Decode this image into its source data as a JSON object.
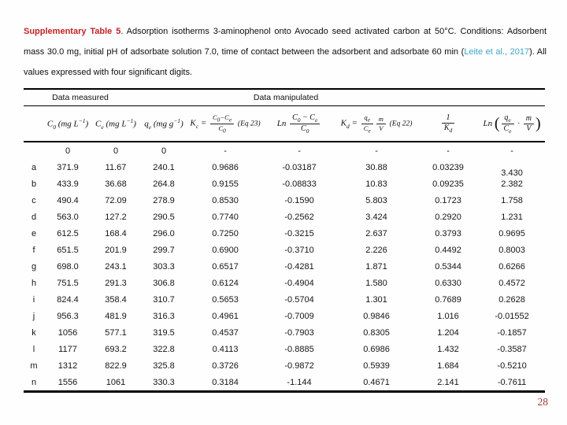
{
  "page": {
    "number": "28"
  },
  "title": {
    "label": "Supplementary Table 5",
    "body_before_link": ". Adsorption isotherms 3-aminophenol onto Avocado seed activated carbon at 50°C. Conditions: Adsorbent mass 30.0 mg, initial pH of adsorbate solution 7.0, time of contact between the adsorbent and adsorbate 60 min (",
    "link": "Leite et al., 2017",
    "body_after_link": "). All values expressed with four significant digits."
  },
  "colors": {
    "caption_label_red": "#c32222",
    "citation_link_blue": "#41a5c9",
    "page_number_red": "#9e3b3b",
    "table_border_black": "#000000"
  },
  "table": {
    "groups": [
      {
        "label": "Data measured"
      },
      {
        "label": "Data manipulated"
      }
    ],
    "columns_html": [
      "C<sub>0</sub> (mg L<sup>−1</sup>)",
      "C<sub>e</sub> (mg L<sup>−1</sup>)",
      "q<sub>e</sub> (mg g<sup>−1</sup>)",
      "K<sub>c</sub> = <span class=\"frac sm\"><span class=\"num\">C<sub>0</sub>−C<sub>e</sub></span><span class=\"den\">C<sub>0</sub></span></span> <span class=\"eq\">(Eq 23)</span>",
      "Ln <span class=\"frac lg\"><span class=\"num\">C<sub>0</sub> − C<sub>e</sub></span><span class=\"den\">C<sub>0</sub></span></span>",
      "K<sub>d</sub> = <span class=\"frac sm\"><span class=\"num\">q<sub>e</sub></span><span class=\"den\">C<sub>e</sub></span></span><span class=\"frac sm\"><span class=\"num\">m</span><span class=\"den\">V</span></span> <span class=\"eq\">(Eq 22)</span>",
      "<span class=\"frac lg\"><span class=\"num\">1</span><span class=\"den\">K<sub>d</sub></span></span>",
      "Ln <span class=\"paren\">(</span><span class=\"frac lg\"><span class=\"num\">q<sub>e</sub></span><span class=\"den\">C<sub>e</sub></span></span> · <span class=\"frac lg\"><span class=\"num\">m</span><span class=\"den\">V</span></span><span class=\"paren\">)</span>"
    ],
    "rows": [
      {
        "label": "",
        "values": [
          "0",
          "0",
          "0",
          "-",
          "-",
          "-",
          "-",
          "-"
        ]
      },
      {
        "label": "a",
        "values": [
          "371.9",
          "11.67",
          "240.1",
          "0.9686",
          "-0.03187",
          "30.88",
          "0.03239",
          "3.430"
        ]
      },
      {
        "label": "b",
        "values": [
          "433.9",
          "36.68",
          "264.8",
          "0.9155",
          "-0.08833",
          "10.83",
          "0.09235",
          "2.382"
        ]
      },
      {
        "label": "c",
        "values": [
          "490.4",
          "72.09",
          "278.9",
          "0.8530",
          "-0.1590",
          "5.803",
          "0.1723",
          "1.758"
        ]
      },
      {
        "label": "d",
        "values": [
          "563.0",
          "127.2",
          "290.5",
          "0.7740",
          "-0.2562",
          "3.424",
          "0.2920",
          "1.231"
        ]
      },
      {
        "label": "e",
        "values": [
          "612.5",
          "168.4",
          "296.0",
          "0.7250",
          "-0.3215",
          "2.637",
          "0.3793",
          "0.9695"
        ]
      },
      {
        "label": "f",
        "values": [
          "651.5",
          "201.9",
          "299.7",
          "0.6900",
          "-0.3710",
          "2.226",
          "0.4492",
          "0.8003"
        ]
      },
      {
        "label": "g",
        "values": [
          "698.0",
          "243.1",
          "303.3",
          "0.6517",
          "-0.4281",
          "1.871",
          "0.5344",
          "0.6266"
        ]
      },
      {
        "label": "h",
        "values": [
          "751.5",
          "291.3",
          "306.8",
          "0.6124",
          "-0.4904",
          "1.580",
          "0.6330",
          "0.4572"
        ]
      },
      {
        "label": "i",
        "values": [
          "824.4",
          "358.4",
          "310.7",
          "0.5653",
          "-0.5704",
          "1.301",
          "0.7689",
          "0.2628"
        ]
      },
      {
        "label": "j",
        "values": [
          "956.3",
          "481.9",
          "316.3",
          "0.4961",
          "-0.7009",
          "0.9846",
          "1.016",
          "-0.01552"
        ]
      },
      {
        "label": "k",
        "values": [
          "1056",
          "577.1",
          "319.5",
          "0.4537",
          "-0.7903",
          "0.8305",
          "1.204",
          "-0.1857"
        ]
      },
      {
        "label": "l",
        "values": [
          "1177",
          "693.2",
          "322.8",
          "0.4113",
          "-0.8885",
          "0.6986",
          "1.432",
          "-0.3587"
        ]
      },
      {
        "label": "m",
        "values": [
          "1312",
          "822.9",
          "325.8",
          "0.3726",
          "-0.9872",
          "0.5939",
          "1.684",
          "-0.5210"
        ]
      },
      {
        "label": "n",
        "values": [
          "1556",
          "1061",
          "330.3",
          "0.3184",
          "-1.144",
          "0.4671",
          "2.141",
          "-0.7611"
        ]
      }
    ]
  }
}
